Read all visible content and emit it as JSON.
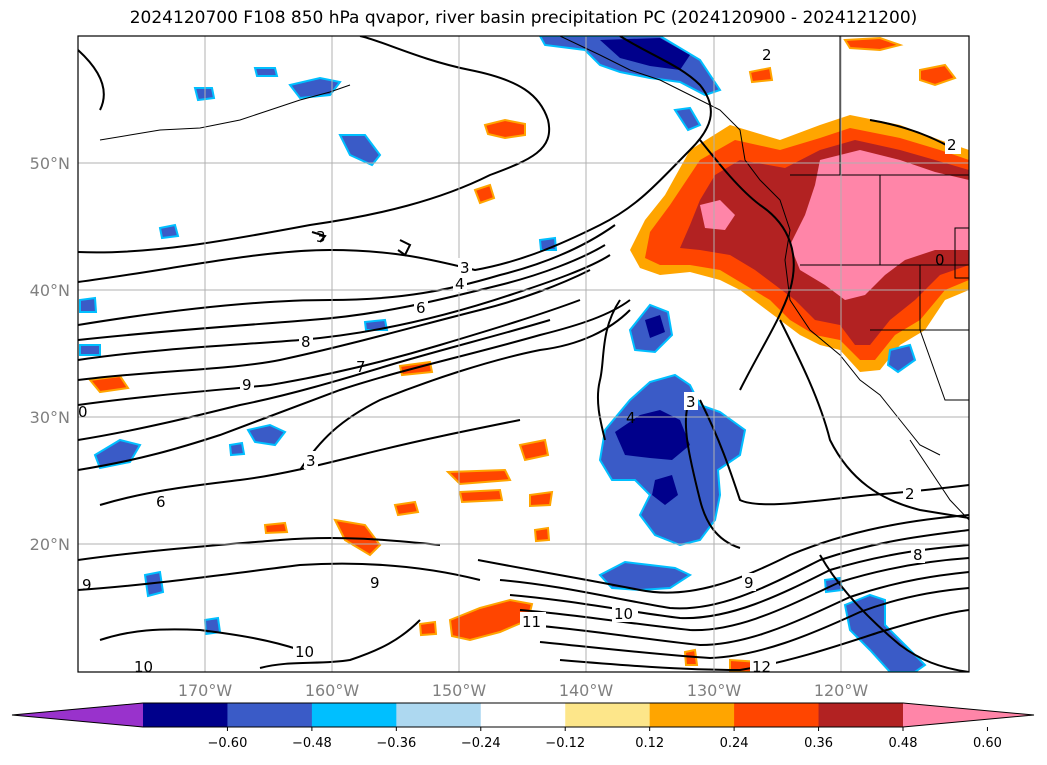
{
  "title": "2024120700 F108 850 hPa qvapor, river basin precipitation PC (2024120900 - 2024121200)",
  "lat_labels": [
    "50°N",
    "40°N",
    "30°N",
    "20°N"
  ],
  "lon_labels": [
    "170°W",
    "160°W",
    "150°W",
    "140°W",
    "130°W",
    "120°W"
  ],
  "colorbar": {
    "ticks": [
      "−0.60",
      "−0.48",
      "−0.36",
      "−0.24",
      "−0.12",
      "0.12",
      "0.24",
      "0.36",
      "0.48",
      "0.60"
    ],
    "colors": [
      "#9932cc",
      "#00008b",
      "#3a5bc7",
      "#00bfff",
      "#add8f0",
      "#ffffff",
      "#fde68a",
      "#ffa500",
      "#ff4500",
      "#b22222",
      "#ff85a8"
    ]
  },
  "contour_labels": [
    "2",
    "2",
    "3",
    "3",
    "4",
    "6",
    "8",
    "7",
    "9",
    "0",
    "3",
    "6",
    "3",
    "2",
    "4",
    "8",
    "9",
    "10",
    "11",
    "12",
    "9",
    "10",
    "10",
    "9",
    "0"
  ],
  "colors": {
    "neg_strong": "#00008b",
    "neg_mid": "#3a5bc7",
    "neg_light": "#00bfff",
    "pos_light": "#ffa500",
    "pos_mid": "#ff4500",
    "pos_strong": "#b22222",
    "pos_max": "#ff85a8",
    "grid": "#b0b0b0"
  }
}
